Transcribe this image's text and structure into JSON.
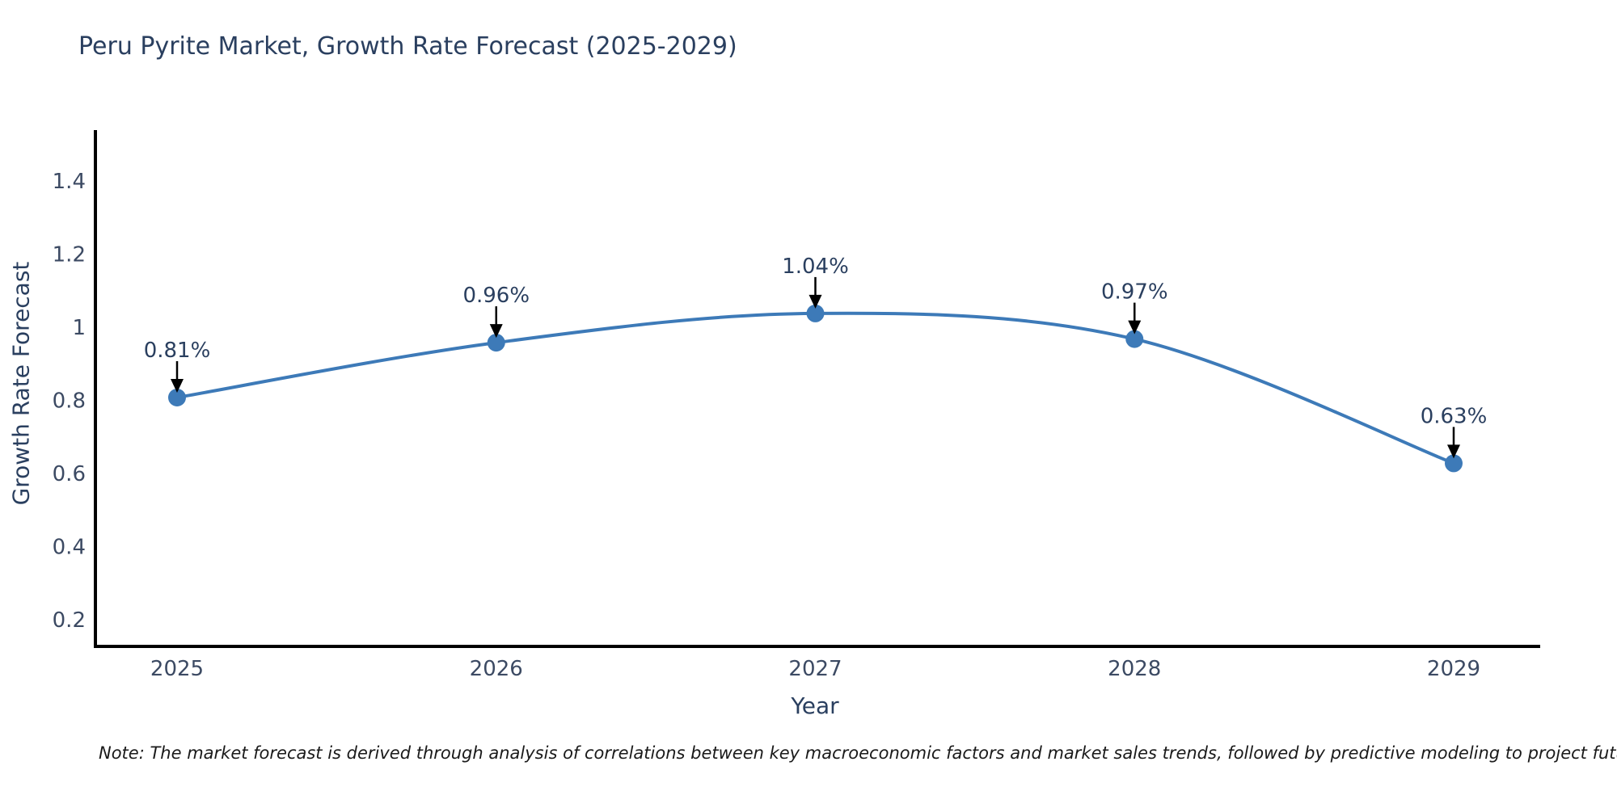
{
  "chart_data": {
    "type": "line",
    "title": "Peru Pyrite Market, Growth Rate Forecast (2025-2029)",
    "xlabel": "Year",
    "ylabel": "Growth Rate Forecast",
    "categories": [
      "2025",
      "2026",
      "2027",
      "2028",
      "2029"
    ],
    "series": [
      {
        "name": "Growth Rate Forecast",
        "values": [
          0.81,
          0.96,
          1.04,
          0.97,
          0.63
        ]
      }
    ],
    "point_labels": [
      "0.81%",
      "0.96%",
      "1.04%",
      "0.97%",
      "0.63%"
    ],
    "y_ticks": [
      0.2,
      0.4,
      0.6,
      0.8,
      1,
      1.2,
      1.4
    ],
    "y_tick_labels": [
      "0.2",
      "0.4",
      "0.6",
      "0.8",
      "1",
      "1.2",
      "1.4"
    ],
    "ylim": [
      0.13,
      1.54
    ],
    "grid": false,
    "legend_position": "none",
    "line_shape": "spline",
    "colors": {
      "line": "#3d7ab8",
      "marker": "#3d7ab8",
      "arrow": "#000000",
      "axis": "#000000",
      "title_text": "#2a3f5f",
      "tick_text": "#3c4a63"
    }
  },
  "note": "Note: The market forecast is derived through analysis of correlations between key macroeconomic factors and market sales trends, followed by predictive modeling to project future sales"
}
